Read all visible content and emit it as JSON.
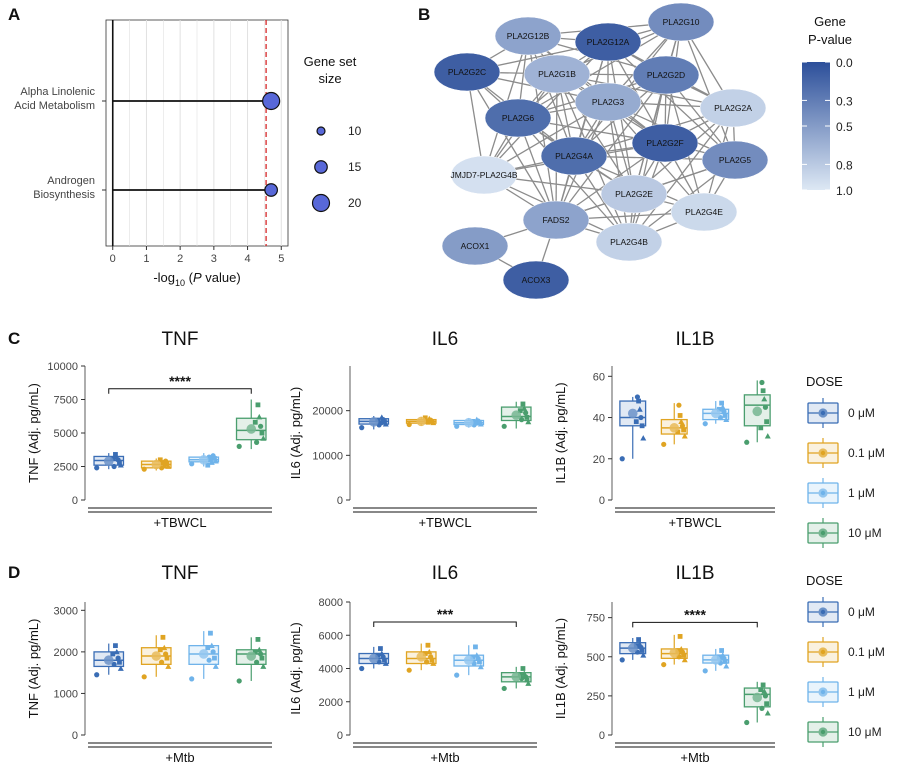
{
  "panel_letters": {
    "a": "A",
    "b": "B",
    "c": "C",
    "d": "D"
  },
  "chart_data": [
    {
      "id": "A",
      "type": "scatter",
      "xlabel_prefix": "-log",
      "xlabel_sub": "10",
      "xlabel_mid": " (",
      "xlabel_italic": "P",
      "xlabel_suffix": " value)",
      "xlim": [
        -0.2,
        5.2
      ],
      "xticks": [
        0,
        1,
        2,
        3,
        4,
        5
      ],
      "categories": [
        "Alpha Linolenic\nAcid Metabolism",
        "Androgen\nBiosynthesis"
      ],
      "category_lines": [
        [
          "Alpha Linolenic",
          "Acid Metabolism"
        ],
        [
          "Androgen",
          "Biosynthesis"
        ]
      ],
      "values": [
        4.7,
        4.7
      ],
      "sizes": [
        20,
        15
      ],
      "threshold": 4.55,
      "legend": {
        "title_lines": [
          "Gene set",
          "size"
        ],
        "sizes": [
          10,
          15,
          20
        ],
        "labels": [
          "10",
          "15",
          "20"
        ]
      },
      "colors": {
        "point": "#5868d8",
        "threshold": "#d62728"
      }
    },
    {
      "id": "B",
      "type": "network",
      "legend": {
        "title_lines": [
          "Gene",
          "P-value"
        ],
        "ticks": [
          "0.0",
          "0.3",
          "0.5",
          "0.8",
          "1.0"
        ],
        "tick_values": [
          0,
          0.3,
          0.5,
          0.8,
          1.0
        ]
      },
      "colors": {
        "low": "#2c4f9a",
        "high": "#dde8f4",
        "edge": "#8c8c8c"
      },
      "nodes": [
        {
          "label": "PLA2G12B",
          "p": 0.55
        },
        {
          "label": "PLA2G12A",
          "p": 0.1
        },
        {
          "label": "PLA2G10",
          "p": 0.4
        },
        {
          "label": "PLA2G2C",
          "p": 0.1
        },
        {
          "label": "PLA2G1B",
          "p": 0.65
        },
        {
          "label": "PLA2G2D",
          "p": 0.3
        },
        {
          "label": "PLA2G3",
          "p": 0.6
        },
        {
          "label": "PLA2G2A",
          "p": 0.85
        },
        {
          "label": "PLA2G6",
          "p": 0.2
        },
        {
          "label": "PLA2G2F",
          "p": 0.1
        },
        {
          "label": "PLA2G4A",
          "p": 0.2
        },
        {
          "label": "PLA2G5",
          "p": 0.4
        },
        {
          "label": "JMJD7-PLA2G4B",
          "p": 0.95
        },
        {
          "label": "PLA2G2E",
          "p": 0.8
        },
        {
          "label": "FADS2",
          "p": 0.55
        },
        {
          "label": "PLA2G4E",
          "p": 0.9
        },
        {
          "label": "ACOX1",
          "p": 0.5
        },
        {
          "label": "PLA2G4B",
          "p": 0.85
        },
        {
          "label": "ACOX3",
          "p": 0.1
        }
      ]
    },
    {
      "id": "C-TNF",
      "type": "box",
      "title": "TNF",
      "ylabel": "TNF (Adj. pg/mL)",
      "group_label": "+TBWCL",
      "ylim": [
        0,
        10000
      ],
      "yticks": [
        0,
        2500,
        5000,
        7500,
        10000
      ],
      "categories": [
        "0 μM",
        "0.1 μM",
        "1 μM",
        "10 μM"
      ],
      "series": [
        {
          "name": "0 μM",
          "q1": 2600,
          "median": 2950,
          "q3": 3250,
          "min": 2300,
          "max": 3500,
          "mean": 2900,
          "points": [
            2400,
            2600,
            2800,
            3000,
            3200,
            3400,
            2500,
            3100
          ]
        },
        {
          "name": "0.1 μM",
          "q1": 2400,
          "median": 2650,
          "q3": 2900,
          "min": 2200,
          "max": 3100,
          "mean": 2650,
          "points": [
            2300,
            2500,
            2700,
            2900,
            2600,
            2800,
            2400,
            3000
          ]
        },
        {
          "name": "1 μM",
          "q1": 2850,
          "median": 3000,
          "q3": 3200,
          "min": 2500,
          "max": 3500,
          "mean": 3000,
          "points": [
            2700,
            2900,
            3100,
            3300,
            2800,
            3000,
            3200,
            2600
          ]
        },
        {
          "name": "10 μM",
          "q1": 4500,
          "median": 5200,
          "q3": 6100,
          "min": 3800,
          "max": 7500,
          "mean": 5300,
          "points": [
            4000,
            4600,
            5000,
            5500,
            6200,
            7100,
            4300,
            5800
          ]
        }
      ],
      "significance": {
        "from": 0,
        "to": 3,
        "label": "****",
        "y": 8300
      }
    },
    {
      "id": "C-IL6",
      "type": "box",
      "title": "IL6",
      "ylabel": "IL6 (Adj. pg/mL)",
      "group_label": "+TBWCL",
      "ylim": [
        0,
        30000
      ],
      "yticks": [
        0,
        10000,
        20000
      ],
      "categories": [
        "0 μM",
        "0.1 μM",
        "1 μM",
        "10 μM"
      ],
      "series": [
        {
          "name": "0 μM",
          "q1": 17000,
          "median": 17600,
          "q3": 18200,
          "min": 15800,
          "max": 18800,
          "mean": 17500,
          "points": [
            16200,
            17000,
            17500,
            18000,
            18500,
            17300,
            16800,
            17900
          ]
        },
        {
          "name": "0.1 μM",
          "q1": 17200,
          "median": 17600,
          "q3": 18000,
          "min": 16600,
          "max": 18600,
          "mean": 17600,
          "points": [
            16900,
            17300,
            17600,
            17900,
            18200,
            17400,
            17700,
            18400
          ]
        },
        {
          "name": "1 μM",
          "q1": 16900,
          "median": 17300,
          "q3": 17800,
          "min": 16200,
          "max": 18300,
          "mean": 17300,
          "points": [
            16500,
            17000,
            17400,
            17700,
            18000,
            17200,
            16800,
            17600
          ]
        },
        {
          "name": "10 μM",
          "q1": 17800,
          "median": 18700,
          "q3": 20800,
          "min": 16000,
          "max": 22000,
          "mean": 19000,
          "points": [
            16500,
            17500,
            18500,
            19500,
            20500,
            21500,
            18000,
            20000
          ]
        }
      ]
    },
    {
      "id": "C-IL1B",
      "type": "box",
      "title": "IL1B",
      "ylabel": "IL1B (Adj. pg/mL)",
      "group_label": "+TBWCL",
      "ylim": [
        0,
        65
      ],
      "yticks": [
        0,
        20,
        40,
        60
      ],
      "categories": [
        "0 μM",
        "0.1 μM",
        "1 μM",
        "10 μM"
      ],
      "series": [
        {
          "name": "0 μM",
          "q1": 36,
          "median": 40,
          "q3": 48,
          "min": 20,
          "max": 50,
          "mean": 42,
          "points": [
            20,
            30,
            36,
            40,
            44,
            48,
            50,
            38
          ]
        },
        {
          "name": "0.1 μM",
          "q1": 32,
          "median": 35,
          "q3": 39,
          "min": 27,
          "max": 47,
          "mean": 35,
          "points": [
            27,
            31,
            34,
            36,
            38,
            41,
            46,
            33
          ]
        },
        {
          "name": "1 μM",
          "q1": 39,
          "median": 42,
          "q3": 44,
          "min": 37,
          "max": 48,
          "mean": 42,
          "points": [
            37,
            39,
            41,
            43,
            45,
            47,
            40,
            44
          ]
        },
        {
          "name": "10 μM",
          "q1": 36,
          "median": 46,
          "q3": 51,
          "min": 28,
          "max": 58,
          "mean": 43,
          "points": [
            28,
            31,
            38,
            45,
            49,
            53,
            57,
            35
          ]
        }
      ]
    },
    {
      "id": "D-TNF",
      "type": "box",
      "title": "TNF",
      "ylabel": "TNF (Adj. pg/mL)",
      "group_label": "+Mtb",
      "ylim": [
        0,
        3200
      ],
      "yticks": [
        0,
        1000,
        2000,
        3000
      ],
      "categories": [
        "0 μM",
        "0.1 μM",
        "1 μM",
        "10 μM"
      ],
      "series": [
        {
          "name": "0 μM",
          "q1": 1650,
          "median": 1800,
          "q3": 2000,
          "min": 1450,
          "max": 2200,
          "mean": 1800,
          "points": [
            1450,
            1600,
            1750,
            1850,
            2000,
            2150,
            1700,
            1950
          ]
        },
        {
          "name": "0.1 μM",
          "q1": 1700,
          "median": 1900,
          "q3": 2100,
          "min": 1400,
          "max": 2400,
          "mean": 1900,
          "points": [
            1400,
            1650,
            1850,
            1950,
            2100,
            2350,
            1750,
            2050
          ]
        },
        {
          "name": "1 μM",
          "q1": 1700,
          "median": 1950,
          "q3": 2150,
          "min": 1350,
          "max": 2500,
          "mean": 1950,
          "points": [
            1350,
            1650,
            1850,
            2000,
            2150,
            2450,
            1800,
            2100
          ]
        },
        {
          "name": "10 μM",
          "q1": 1700,
          "median": 1950,
          "q3": 2050,
          "min": 1300,
          "max": 2350,
          "mean": 1900,
          "points": [
            1300,
            1650,
            1850,
            1950,
            2050,
            2300,
            1750,
            2000
          ]
        }
      ]
    },
    {
      "id": "D-IL6",
      "type": "box",
      "title": "IL6",
      "ylabel": "IL6 (Adj. pg/mL)",
      "group_label": "+Mtb",
      "ylim": [
        0,
        8000
      ],
      "yticks": [
        0,
        2000,
        4000,
        6000,
        8000
      ],
      "categories": [
        "0 μM",
        "0.1 μM",
        "1 μM",
        "10 μM"
      ],
      "series": [
        {
          "name": "0 μM",
          "q1": 4300,
          "median": 4600,
          "q3": 4900,
          "min": 4000,
          "max": 5300,
          "mean": 4600,
          "points": [
            4000,
            4300,
            4500,
            4700,
            4900,
            5200,
            4400,
            4800
          ]
        },
        {
          "name": "0.1 μM",
          "q1": 4300,
          "median": 4600,
          "q3": 5000,
          "min": 3900,
          "max": 5500,
          "mean": 4700,
          "points": [
            3900,
            4300,
            4500,
            4700,
            5000,
            5400,
            4400,
            4900
          ]
        },
        {
          "name": "1 μM",
          "q1": 4150,
          "median": 4500,
          "q3": 4800,
          "min": 3600,
          "max": 5400,
          "mean": 4500,
          "points": [
            3600,
            4100,
            4400,
            4600,
            4800,
            5300,
            4300,
            4700
          ]
        },
        {
          "name": "10 μM",
          "q1": 3200,
          "median": 3500,
          "q3": 3750,
          "min": 2800,
          "max": 4100,
          "mean": 3500,
          "points": [
            2800,
            3100,
            3300,
            3500,
            3700,
            4000,
            3400,
            3600
          ]
        }
      ],
      "significance": {
        "from": 0,
        "to": 3,
        "label": "***",
        "y": 6800
      }
    },
    {
      "id": "D-IL1B",
      "type": "box",
      "title": "IL1B",
      "ylabel": "IL1B (Adj. pg/mL)",
      "group_label": "+Mtb",
      "ylim": [
        0,
        850
      ],
      "yticks": [
        0,
        250,
        500,
        750
      ],
      "categories": [
        "0 μM",
        "0.1 μM",
        "1 μM",
        "10 μM"
      ],
      "series": [
        {
          "name": "0 μM",
          "q1": 520,
          "median": 555,
          "q3": 590,
          "min": 480,
          "max": 620,
          "mean": 555,
          "points": [
            480,
            510,
            540,
            560,
            580,
            610,
            530,
            570
          ]
        },
        {
          "name": "0.1 μM",
          "q1": 490,
          "median": 520,
          "q3": 550,
          "min": 450,
          "max": 640,
          "mean": 525,
          "points": [
            450,
            480,
            510,
            530,
            550,
            630,
            500,
            540
          ]
        },
        {
          "name": "1 μM",
          "q1": 460,
          "median": 480,
          "q3": 510,
          "min": 410,
          "max": 550,
          "mean": 480,
          "points": [
            410,
            440,
            470,
            490,
            510,
            540,
            460,
            500
          ]
        },
        {
          "name": "10 μM",
          "q1": 180,
          "median": 260,
          "q3": 300,
          "min": 80,
          "max": 340,
          "mean": 240,
          "points": [
            80,
            140,
            200,
            250,
            280,
            320,
            170,
            290
          ]
        }
      ],
      "significance": {
        "from": 0,
        "to": 3,
        "label": "****",
        "y": 720
      }
    }
  ],
  "dose_legend": {
    "title": "DOSE",
    "entries": [
      "0 μM",
      "0.1 μM",
      "1 μM",
      "10 μM"
    ],
    "colors": [
      "#3a6db5",
      "#e0a422",
      "#6fb3ea",
      "#4a9e6e"
    ]
  }
}
